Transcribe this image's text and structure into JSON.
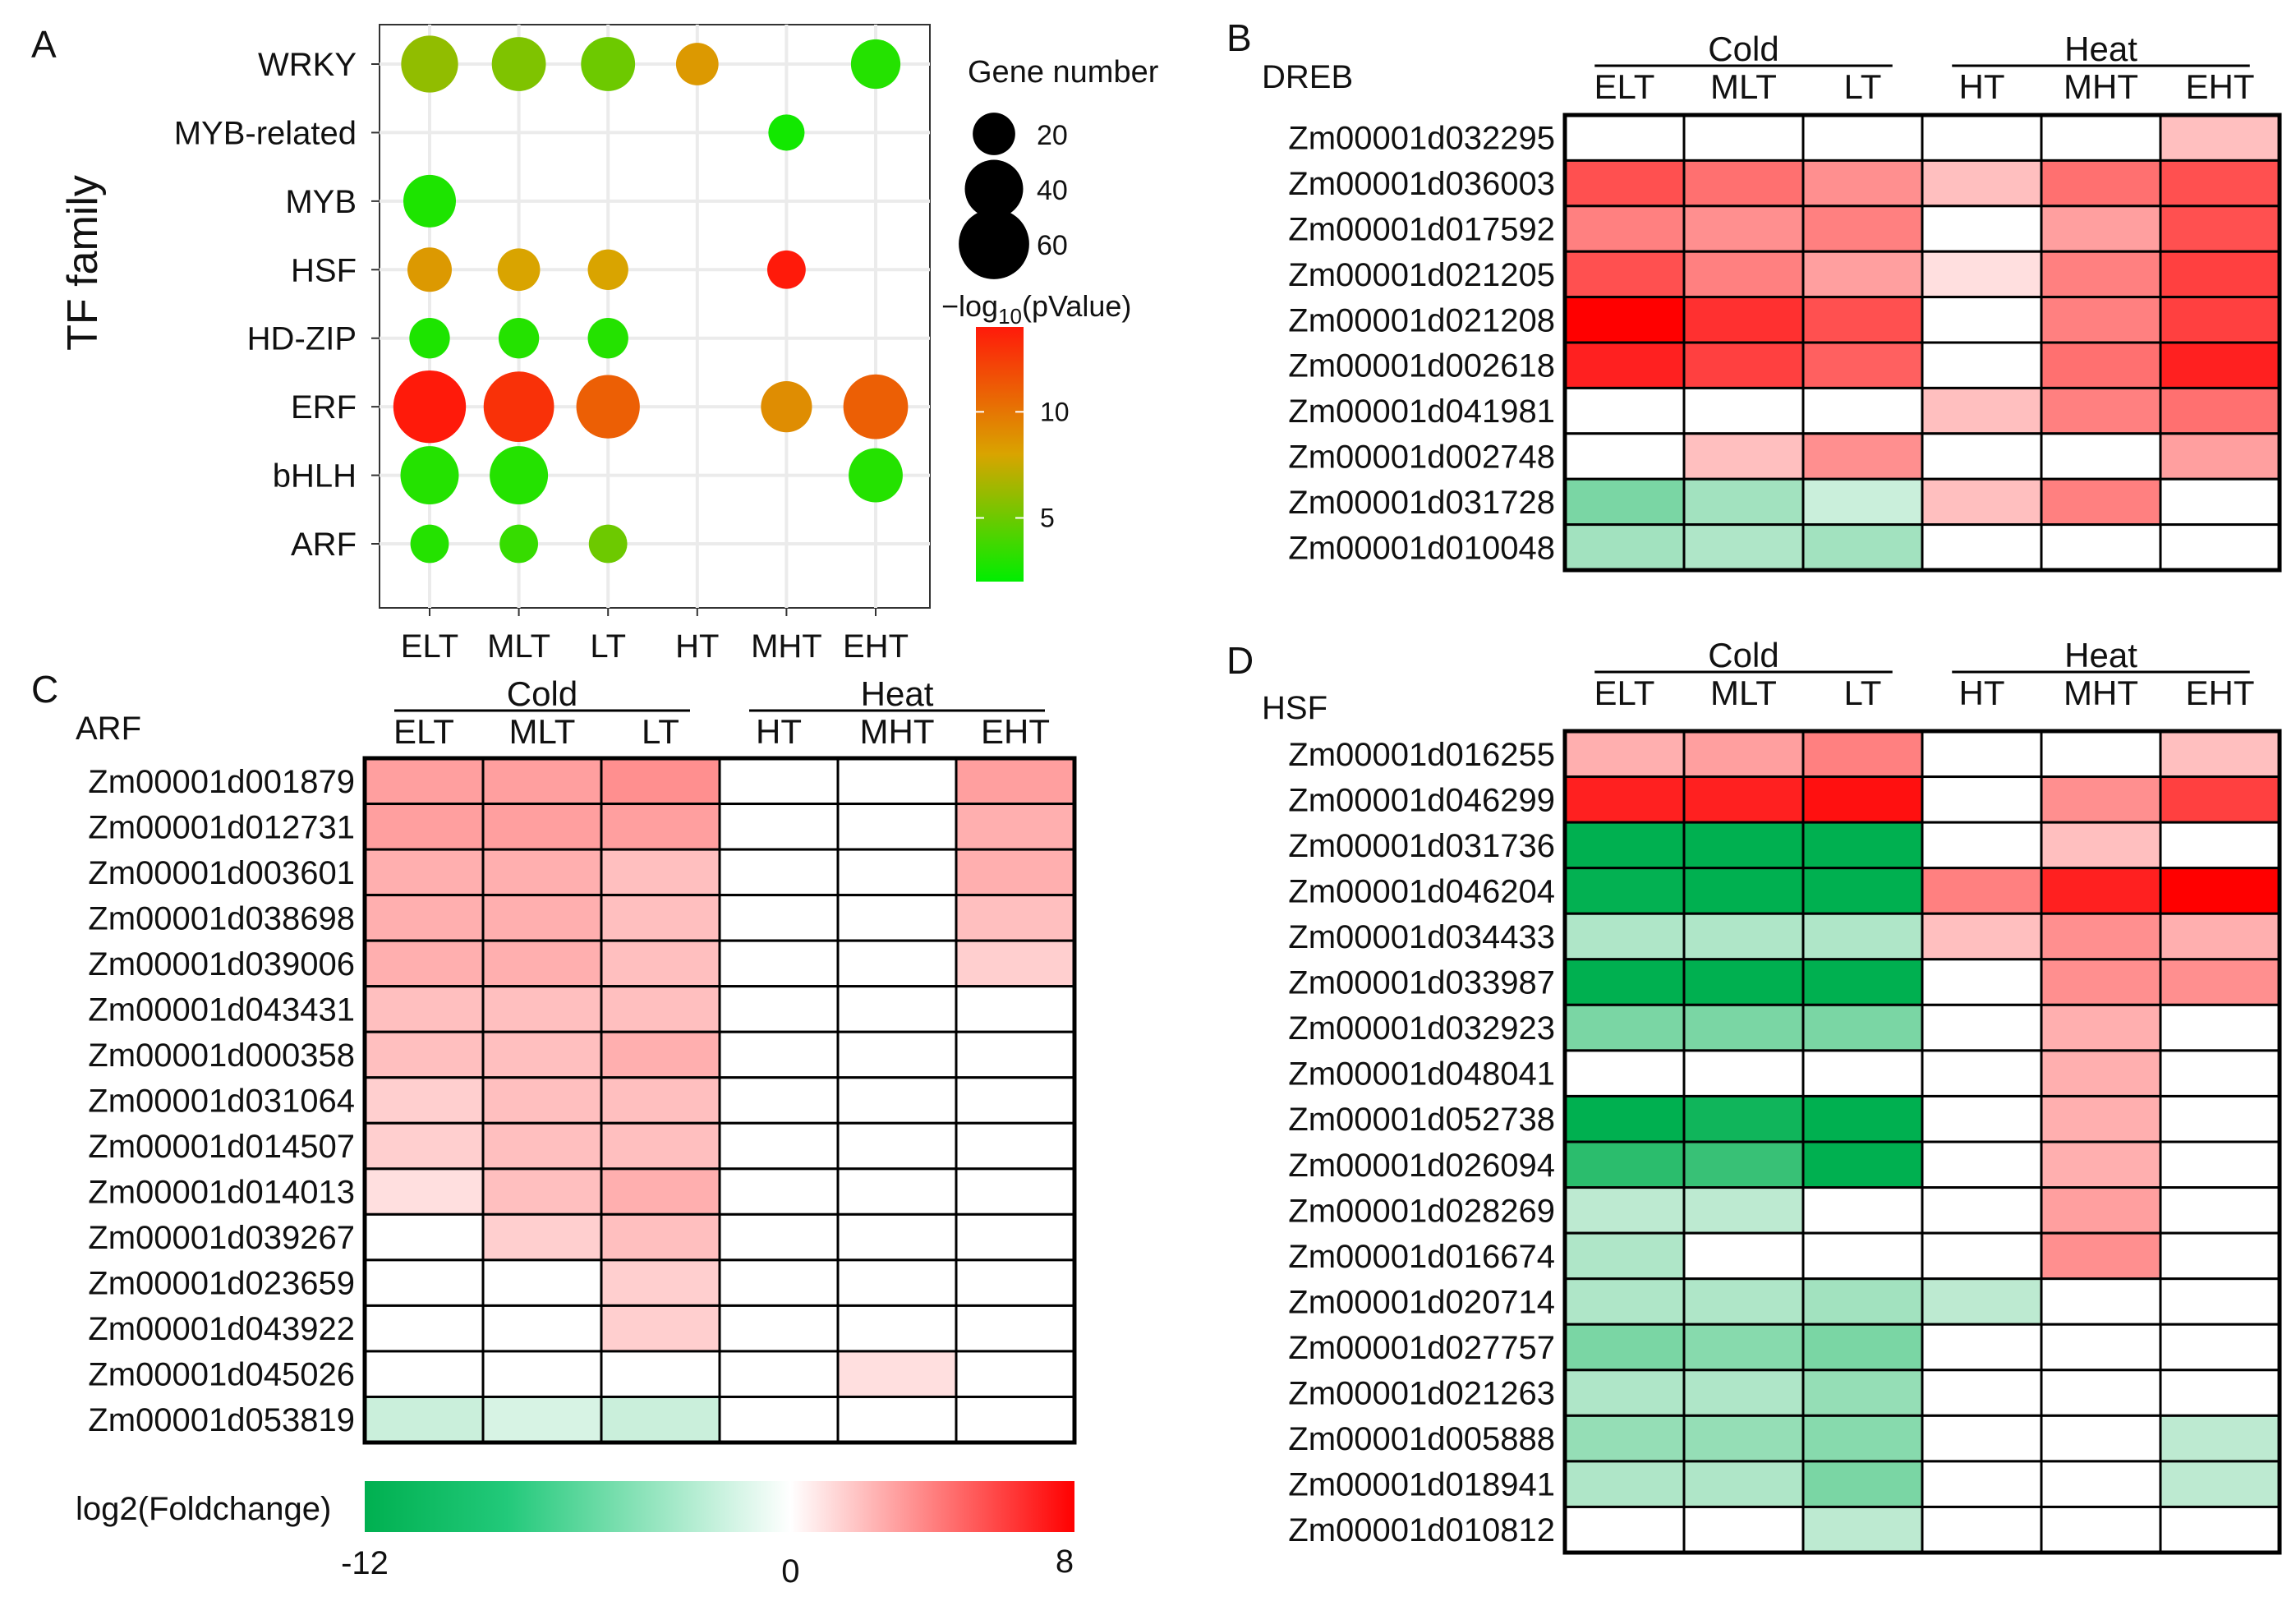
{
  "chart_data": [
    {
      "panel": "A",
      "type": "scatter",
      "subtype": "bubble",
      "ylabel": "TF family",
      "xlabel": "",
      "x_categories": [
        "ELT",
        "MLT",
        "LT",
        "HT",
        "MHT",
        "EHT"
      ],
      "y_categories": [
        "WRKY",
        "MYB-related",
        "MYB",
        "HSF",
        "HD-ZIP",
        "ERF",
        "bHLH",
        "ARF"
      ],
      "size_legend": {
        "title": "Gene number",
        "values": [
          20,
          40,
          60
        ]
      },
      "color_legend": {
        "title_prefix": "−log",
        "title_sub": "10",
        "title_suffix": "(pValue)",
        "ticks": [
          5,
          10
        ],
        "range": [
          2,
          14
        ],
        "low_color": "#00ee00",
        "mid_color": "#d9a400",
        "high_color": "#ff1a0a"
      },
      "points": [
        {
          "x": "ELT",
          "y": "WRKY",
          "size": 38,
          "value": 6
        },
        {
          "x": "MLT",
          "y": "WRKY",
          "size": 34,
          "value": 5.5
        },
        {
          "x": "LT",
          "y": "WRKY",
          "size": 34,
          "value": 5
        },
        {
          "x": "HT",
          "y": "WRKY",
          "size": 20,
          "value": 8.5
        },
        {
          "x": "EHT",
          "y": "WRKY",
          "size": 28,
          "value": 3
        },
        {
          "x": "MHT",
          "y": "MYB-related",
          "size": 14,
          "value": 2.5
        },
        {
          "x": "ELT",
          "y": "MYB",
          "size": 32,
          "value": 2.8
        },
        {
          "x": "ELT",
          "y": "HSF",
          "size": 22,
          "value": 8.5
        },
        {
          "x": "MLT",
          "y": "HSF",
          "size": 20,
          "value": 8
        },
        {
          "x": "LT",
          "y": "HSF",
          "size": 18,
          "value": 8
        },
        {
          "x": "MHT",
          "y": "HSF",
          "size": 16,
          "value": 14
        },
        {
          "x": "ELT",
          "y": "HD-ZIP",
          "size": 18,
          "value": 2.8
        },
        {
          "x": "MLT",
          "y": "HD-ZIP",
          "size": 18,
          "value": 3
        },
        {
          "x": "LT",
          "y": "HD-ZIP",
          "size": 18,
          "value": 3
        },
        {
          "x": "ELT",
          "y": "ERF",
          "size": 64,
          "value": 14
        },
        {
          "x": "MLT",
          "y": "ERF",
          "size": 60,
          "value": 13
        },
        {
          "x": "LT",
          "y": "ERF",
          "size": 48,
          "value": 11
        },
        {
          "x": "MHT",
          "y": "ERF",
          "size": 30,
          "value": 9
        },
        {
          "x": "EHT",
          "y": "ERF",
          "size": 50,
          "value": 11
        },
        {
          "x": "ELT",
          "y": "bHLH",
          "size": 40,
          "value": 3
        },
        {
          "x": "MLT",
          "y": "bHLH",
          "size": 40,
          "value": 3
        },
        {
          "x": "EHT",
          "y": "bHLH",
          "size": 34,
          "value": 3
        },
        {
          "x": "ELT",
          "y": "ARF",
          "size": 16,
          "value": 3
        },
        {
          "x": "MLT",
          "y": "ARF",
          "size": 16,
          "value": 3.5
        },
        {
          "x": "LT",
          "y": "ARF",
          "size": 16,
          "value": 5
        }
      ]
    },
    {
      "panel": "B",
      "type": "heatmap",
      "family": "DREB",
      "group_labels": [
        "Cold",
        "Heat"
      ],
      "columns": [
        "ELT",
        "MLT",
        "LT",
        "HT",
        "MHT",
        "EHT"
      ],
      "rows": [
        "Zm00001d032295",
        "Zm00001d036003",
        "Zm00001d017592",
        "Zm00001d021205",
        "Zm00001d021208",
        "Zm00001d002618",
        "Zm00001d041981",
        "Zm00001d002748",
        "Zm00001d031728",
        "Zm00001d010048"
      ],
      "values": [
        [
          0,
          0,
          0,
          0,
          0,
          2
        ],
        [
          5.5,
          4.5,
          3.5,
          2,
          4.5,
          5.5
        ],
        [
          4,
          3.5,
          4,
          0,
          3,
          5.5
        ],
        [
          5.5,
          4,
          3,
          1,
          4,
          6
        ],
        [
          8,
          6.5,
          5.5,
          0,
          4,
          6
        ],
        [
          7,
          6,
          5,
          0,
          4.5,
          7
        ],
        [
          0,
          0,
          0,
          2,
          4,
          4.5
        ],
        [
          0,
          2,
          3.5,
          0,
          0,
          3
        ],
        [
          -5,
          -3.5,
          -2,
          2,
          4,
          0
        ],
        [
          -3.5,
          -3,
          -3.5,
          0,
          0,
          0
        ]
      ]
    },
    {
      "panel": "C",
      "type": "heatmap",
      "family": "ARF",
      "group_labels": [
        "Cold",
        "Heat"
      ],
      "columns": [
        "ELT",
        "MLT",
        "LT",
        "HT",
        "MHT",
        "EHT"
      ],
      "rows": [
        "Zm00001d001879",
        "Zm00001d012731",
        "Zm00001d003601",
        "Zm00001d038698",
        "Zm00001d039006",
        "Zm00001d043431",
        "Zm00001d000358",
        "Zm00001d031064",
        "Zm00001d014507",
        "Zm00001d014013",
        "Zm00001d039267",
        "Zm00001d023659",
        "Zm00001d043922",
        "Zm00001d045026",
        "Zm00001d053819"
      ],
      "values": [
        [
          3,
          3,
          3.5,
          0,
          0,
          3
        ],
        [
          3,
          3,
          3,
          0,
          0,
          2.5
        ],
        [
          2.5,
          2.5,
          2,
          0,
          0,
          2.5
        ],
        [
          2.5,
          2.5,
          2,
          0,
          0,
          2
        ],
        [
          2.5,
          2.5,
          2,
          0,
          0,
          1.5
        ],
        [
          2,
          2,
          2,
          0,
          0,
          0
        ],
        [
          2,
          2,
          2.5,
          0,
          0,
          0
        ],
        [
          1.5,
          2,
          2,
          0,
          0,
          0
        ],
        [
          1.5,
          2,
          2,
          0,
          0,
          0
        ],
        [
          1,
          2,
          2.5,
          0,
          0,
          0
        ],
        [
          0,
          1.5,
          2,
          0,
          0,
          0
        ],
        [
          0,
          0,
          1.5,
          0,
          0,
          0
        ],
        [
          0,
          0,
          1.5,
          0,
          0,
          0
        ],
        [
          0,
          0,
          0,
          0,
          1,
          0
        ],
        [
          -2,
          -1.5,
          -2,
          0,
          0,
          0
        ]
      ]
    },
    {
      "panel": "D",
      "type": "heatmap",
      "family": "HSF",
      "group_labels": [
        "Cold",
        "Heat"
      ],
      "columns": [
        "ELT",
        "MLT",
        "LT",
        "HT",
        "MHT",
        "EHT"
      ],
      "rows": [
        "Zm00001d016255",
        "Zm00001d046299",
        "Zm00001d031736",
        "Zm00001d046204",
        "Zm00001d034433",
        "Zm00001d033987",
        "Zm00001d032923",
        "Zm00001d048041",
        "Zm00001d052738",
        "Zm00001d026094",
        "Zm00001d028269",
        "Zm00001d016674",
        "Zm00001d020714",
        "Zm00001d027757",
        "Zm00001d021263",
        "Zm00001d005888",
        "Zm00001d018941",
        "Zm00001d010812"
      ],
      "values": [
        [
          2.5,
          3,
          4,
          0,
          0,
          2
        ],
        [
          7,
          7,
          7.5,
          0,
          3.5,
          6
        ],
        [
          -11,
          -11,
          -11,
          0,
          2,
          0
        ],
        [
          -9.5,
          -10,
          -10,
          4,
          7,
          8
        ],
        [
          -3,
          -3,
          -3,
          2,
          3.5,
          2.5
        ],
        [
          -10,
          -11,
          -10,
          0,
          3.5,
          3.5
        ],
        [
          -5,
          -5,
          -5,
          0,
          2.5,
          0
        ],
        [
          0,
          0,
          0,
          0,
          2.5,
          0
        ],
        [
          -10,
          -9,
          -10,
          0,
          2.5,
          0
        ],
        [
          -8,
          -7.5,
          -10,
          0,
          2.5,
          0
        ],
        [
          -2.5,
          -2.5,
          0,
          0,
          3,
          0
        ],
        [
          -3,
          0,
          0,
          0,
          3.5,
          0
        ],
        [
          -3,
          -3,
          -3.5,
          -2.5,
          0,
          0
        ],
        [
          -5,
          -4.5,
          -5,
          0,
          0,
          0
        ],
        [
          -3,
          -3,
          -4,
          0,
          0,
          0
        ],
        [
          -4,
          -4,
          -4.5,
          0,
          0,
          -2.5
        ],
        [
          -3,
          -3,
          -5,
          0,
          0,
          -2.5
        ],
        [
          0,
          0,
          -2.5,
          0,
          0,
          0
        ]
      ]
    },
    {
      "panel": "legend",
      "type": "colorbar",
      "title": "log2(Foldchange)",
      "min": -12,
      "mid": 0,
      "max": 8,
      "tick_labels": [
        "-12",
        "0",
        "8"
      ],
      "low_color": "#00b050",
      "mid_color": "#ffffff",
      "high_color": "#ff0000"
    }
  ],
  "panel_letters": [
    "A",
    "B",
    "C",
    "D"
  ]
}
